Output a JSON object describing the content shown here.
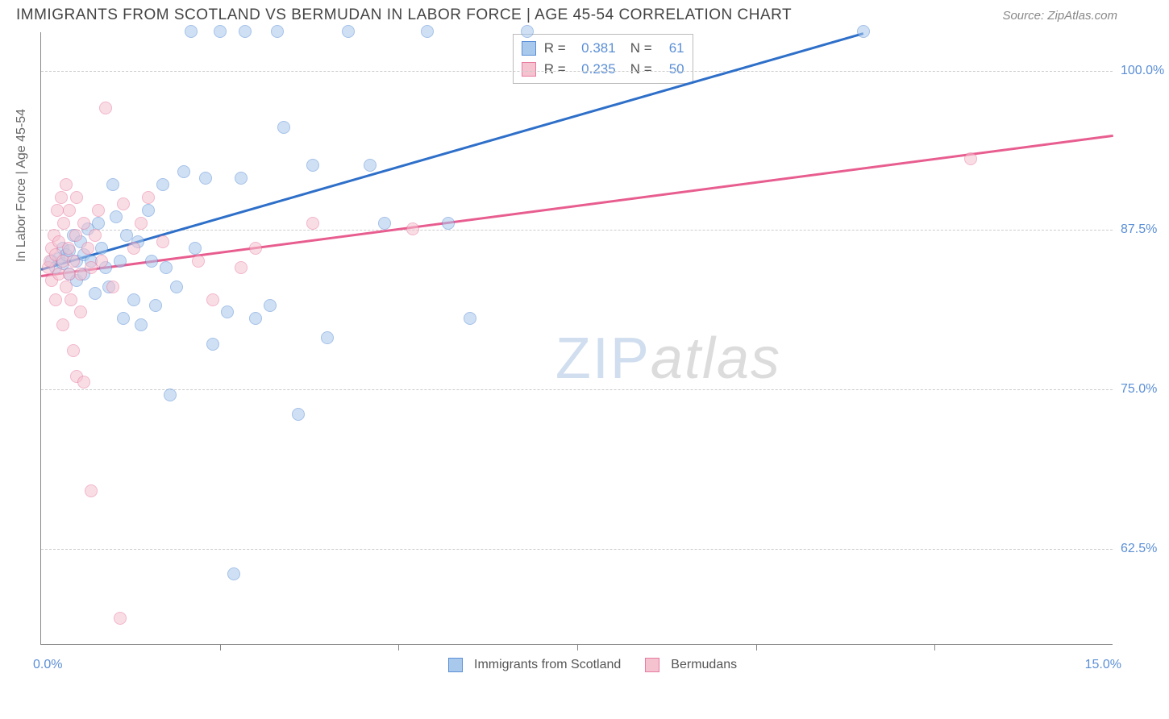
{
  "title": "IMMIGRANTS FROM SCOTLAND VS BERMUDAN IN LABOR FORCE | AGE 45-54 CORRELATION CHART",
  "source": "Source: ZipAtlas.com",
  "ylabel": "In Labor Force | Age 45-54",
  "watermark": {
    "zip": "ZIP",
    "atlas": "atlas"
  },
  "chart": {
    "type": "scatter",
    "background_color": "#ffffff",
    "grid_color": "#cccccc",
    "axis_color": "#888888",
    "label_color": "#5b8fd6",
    "marker_radius": 8,
    "marker_opacity": 0.55,
    "xlim": [
      0,
      15
    ],
    "ylim": [
      55,
      103
    ],
    "ytick_values": [
      62.5,
      75.0,
      87.5,
      100.0
    ],
    "ytick_labels": [
      "62.5%",
      "75.0%",
      "87.5%",
      "100.0%"
    ],
    "xtick_values": [
      0,
      2.5,
      5,
      7.5,
      10,
      12.5,
      15
    ],
    "xtick_labels": [
      "0.0%",
      "",
      "",
      "",
      "",
      "",
      "15.0%"
    ],
    "series": [
      {
        "name": "Immigrants from Scotland",
        "fill": "#a8c8ec",
        "stroke": "#5b8fd6",
        "line_color": "#2e6fc9",
        "trend": {
          "x1": 0,
          "y1": 84.5,
          "x2": 11.5,
          "y2": 103
        },
        "stats": {
          "r_label": "R =",
          "r": "0.381",
          "n_label": "N =",
          "n": "61"
        },
        "points": [
          [
            0.15,
            85
          ],
          [
            0.2,
            84.5
          ],
          [
            0.25,
            85.2
          ],
          [
            0.3,
            84.8
          ],
          [
            0.3,
            86
          ],
          [
            0.35,
            85.5
          ],
          [
            0.4,
            84
          ],
          [
            0.4,
            85.8
          ],
          [
            0.45,
            87
          ],
          [
            0.5,
            85
          ],
          [
            0.5,
            83.5
          ],
          [
            0.55,
            86.5
          ],
          [
            0.6,
            85.5
          ],
          [
            0.6,
            84
          ],
          [
            0.65,
            87.5
          ],
          [
            0.7,
            85
          ],
          [
            0.75,
            82.5
          ],
          [
            0.8,
            88
          ],
          [
            0.85,
            86
          ],
          [
            0.9,
            84.5
          ],
          [
            0.95,
            83
          ],
          [
            1.0,
            91
          ],
          [
            1.05,
            88.5
          ],
          [
            1.1,
            85
          ],
          [
            1.15,
            80.5
          ],
          [
            1.2,
            87
          ],
          [
            1.3,
            82
          ],
          [
            1.35,
            86.5
          ],
          [
            1.4,
            80
          ],
          [
            1.5,
            89
          ],
          [
            1.55,
            85
          ],
          [
            1.6,
            81.5
          ],
          [
            1.7,
            91
          ],
          [
            1.75,
            84.5
          ],
          [
            1.8,
            74.5
          ],
          [
            1.9,
            83
          ],
          [
            2.0,
            92
          ],
          [
            2.1,
            103
          ],
          [
            2.15,
            86
          ],
          [
            2.3,
            91.5
          ],
          [
            2.4,
            78.5
          ],
          [
            2.5,
            103
          ],
          [
            2.6,
            81
          ],
          [
            2.7,
            60.5
          ],
          [
            2.8,
            91.5
          ],
          [
            2.85,
            103
          ],
          [
            3.0,
            80.5
          ],
          [
            3.2,
            81.5
          ],
          [
            3.3,
            103
          ],
          [
            3.4,
            95.5
          ],
          [
            3.6,
            73
          ],
          [
            3.8,
            92.5
          ],
          [
            4.0,
            79
          ],
          [
            4.3,
            103
          ],
          [
            4.6,
            92.5
          ],
          [
            4.8,
            88
          ],
          [
            5.4,
            103
          ],
          [
            5.7,
            88
          ],
          [
            6.0,
            80.5
          ],
          [
            6.8,
            103
          ],
          [
            11.5,
            103
          ]
        ]
      },
      {
        "name": "Bermudans",
        "fill": "#f5c2d0",
        "stroke": "#e87ba0",
        "line_color": "#e85d8f",
        "trend": {
          "x1": 0,
          "y1": 84,
          "x2": 15,
          "y2": 95
        },
        "stats": {
          "r_label": "R =",
          "r": "0.235",
          "n_label": "N =",
          "n": "50"
        },
        "points": [
          [
            0.1,
            84.5
          ],
          [
            0.12,
            85
          ],
          [
            0.15,
            86
          ],
          [
            0.15,
            83.5
          ],
          [
            0.18,
            87
          ],
          [
            0.2,
            85.5
          ],
          [
            0.2,
            82
          ],
          [
            0.22,
            89
          ],
          [
            0.25,
            84
          ],
          [
            0.25,
            86.5
          ],
          [
            0.28,
            90
          ],
          [
            0.3,
            85
          ],
          [
            0.3,
            80
          ],
          [
            0.32,
            88
          ],
          [
            0.35,
            83
          ],
          [
            0.35,
            91
          ],
          [
            0.38,
            86
          ],
          [
            0.4,
            84
          ],
          [
            0.4,
            89
          ],
          [
            0.42,
            82
          ],
          [
            0.45,
            85
          ],
          [
            0.45,
            78
          ],
          [
            0.48,
            87
          ],
          [
            0.5,
            90
          ],
          [
            0.5,
            76
          ],
          [
            0.55,
            84
          ],
          [
            0.55,
            81
          ],
          [
            0.6,
            88
          ],
          [
            0.6,
            75.5
          ],
          [
            0.65,
            86
          ],
          [
            0.7,
            84.5
          ],
          [
            0.7,
            67
          ],
          [
            0.75,
            87
          ],
          [
            0.8,
            89
          ],
          [
            0.85,
            85
          ],
          [
            0.9,
            97
          ],
          [
            1.0,
            83
          ],
          [
            1.1,
            57
          ],
          [
            1.15,
            89.5
          ],
          [
            1.3,
            86
          ],
          [
            1.4,
            88
          ],
          [
            1.5,
            90
          ],
          [
            1.7,
            86.5
          ],
          [
            2.2,
            85
          ],
          [
            2.4,
            82
          ],
          [
            2.8,
            84.5
          ],
          [
            3.0,
            86
          ],
          [
            3.8,
            88
          ],
          [
            5.2,
            87.5
          ],
          [
            13.0,
            93
          ]
        ]
      }
    ],
    "legend_bottom": [
      {
        "label": "Immigrants from Scotland",
        "fill": "#a8c8ec",
        "stroke": "#5b8fd6"
      },
      {
        "label": "Bermudans",
        "fill": "#f5c2d0",
        "stroke": "#e87ba0"
      }
    ]
  }
}
